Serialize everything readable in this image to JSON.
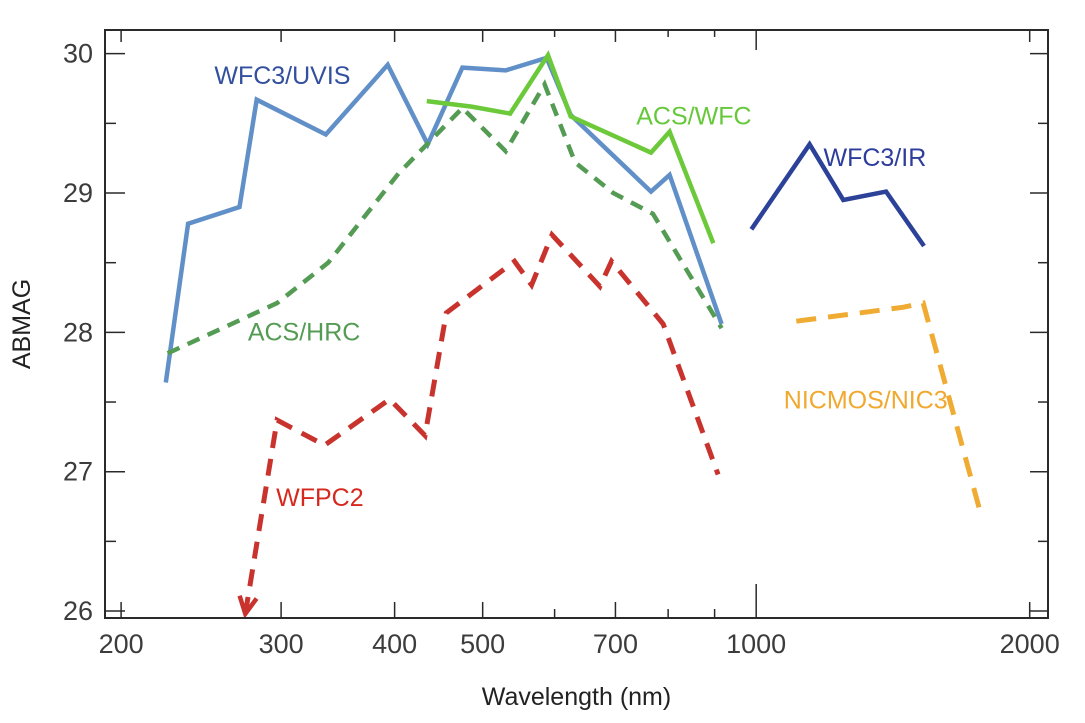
{
  "chart_data": {
    "type": "line",
    "title": "",
    "xlabel": "Wavelength (nm)",
    "ylabel": "ABMAG",
    "x_scale": "log",
    "xlim": [
      192,
      2095
    ],
    "ylim": [
      25.95,
      30.17
    ],
    "x_ticks_labeled": [
      200,
      300,
      400,
      500,
      700,
      1000,
      2000
    ],
    "x_ticks_minor": [
      600,
      800,
      900
    ],
    "y_ticks_labeled": [
      26,
      27,
      28,
      29,
      30
    ],
    "y_ticks_minor": [
      26.5,
      27.5,
      28.5,
      29.5
    ],
    "grid": false,
    "legend": "inline-labels",
    "axis_color": "#2a2a2a",
    "tick_label_color": "#3c3c3c",
    "series": [
      {
        "name": "WFC3/UVIS",
        "color": "#6190c8",
        "style": "solid",
        "width": 4.5,
        "points": [
          [
            224,
            27.64
          ],
          [
            237,
            28.78
          ],
          [
            270,
            28.9
          ],
          [
            282,
            29.67
          ],
          [
            336,
            29.42
          ],
          [
            393,
            29.92
          ],
          [
            435,
            29.35
          ],
          [
            475,
            29.9
          ],
          [
            530,
            29.88
          ],
          [
            588,
            29.97
          ],
          [
            625,
            29.56
          ],
          [
            766,
            29.01
          ],
          [
            803,
            29.13
          ],
          [
            916,
            28.06
          ]
        ],
        "label": {
          "text": "WFC3/UVIS",
          "x": 301,
          "y": 29.84,
          "color": "#33509e"
        }
      },
      {
        "name": "ACS/WFC",
        "color": "#6cc93a",
        "style": "solid",
        "width": 4.5,
        "points": [
          [
            434,
            29.66
          ],
          [
            486,
            29.62
          ],
          [
            536,
            29.57
          ],
          [
            590,
            29.99
          ],
          [
            625,
            29.55
          ],
          [
            766,
            29.29
          ],
          [
            803,
            29.44
          ],
          [
            897,
            28.64
          ]
        ],
        "label": {
          "text": "ACS/WFC",
          "x": 854,
          "y": 29.55,
          "color": "#66c83a"
        }
      },
      {
        "name": "WFC3/IR",
        "color": "#2c4198",
        "style": "solid",
        "width": 4.5,
        "points": [
          [
            988,
            28.74
          ],
          [
            1145,
            29.35
          ],
          [
            1247,
            28.95
          ],
          [
            1390,
            29.01
          ],
          [
            1530,
            28.62
          ]
        ],
        "label": {
          "text": "WFC3/IR",
          "x": 1351,
          "y": 29.25,
          "color": "#2c3d9b"
        }
      },
      {
        "name": "ACS/HRC",
        "color": "#549b54",
        "style": "dashed",
        "dash": [
          13,
          9
        ],
        "width": 4.5,
        "points": [
          [
            225,
            27.85
          ],
          [
            297,
            28.21
          ],
          [
            338,
            28.5
          ],
          [
            404,
            29.14
          ],
          [
            475,
            29.61
          ],
          [
            530,
            29.3
          ],
          [
            585,
            29.78
          ],
          [
            632,
            29.22
          ],
          [
            696,
            29.0
          ],
          [
            770,
            28.85
          ],
          [
            916,
            28.03
          ]
        ],
        "label": {
          "text": "ACS/HRC",
          "x": 318,
          "y": 28.0,
          "color": "#549b54"
        }
      },
      {
        "name": "WFPC2",
        "color": "#c9332e",
        "style": "dashed",
        "dash": [
          17,
          11
        ],
        "width": 5,
        "arrow_start": true,
        "points": [
          [
            274,
            25.98
          ],
          [
            297,
            27.37
          ],
          [
            335,
            27.19
          ],
          [
            395,
            27.52
          ],
          [
            432,
            27.26
          ],
          [
            456,
            28.14
          ],
          [
            542,
            28.51
          ],
          [
            566,
            28.34
          ],
          [
            596,
            28.7
          ],
          [
            673,
            28.33
          ],
          [
            693,
            28.51
          ],
          [
            790,
            28.06
          ],
          [
            908,
            26.98
          ]
        ],
        "label": {
          "text": "WFPC2",
          "x": 331,
          "y": 26.81,
          "color": "#d6281e"
        }
      },
      {
        "name": "NICMOS/NIC3",
        "color": "#efab32",
        "style": "dashed",
        "dash": [
          20,
          12
        ],
        "width": 5,
        "points": [
          [
            1107,
            28.08
          ],
          [
            1450,
            28.18
          ],
          [
            1527,
            28.21
          ],
          [
            1763,
            26.72
          ]
        ],
        "label": {
          "text": "NICMOS/NIC3",
          "x": 1320,
          "y": 27.51,
          "color": "#f0a92e"
        }
      }
    ]
  }
}
